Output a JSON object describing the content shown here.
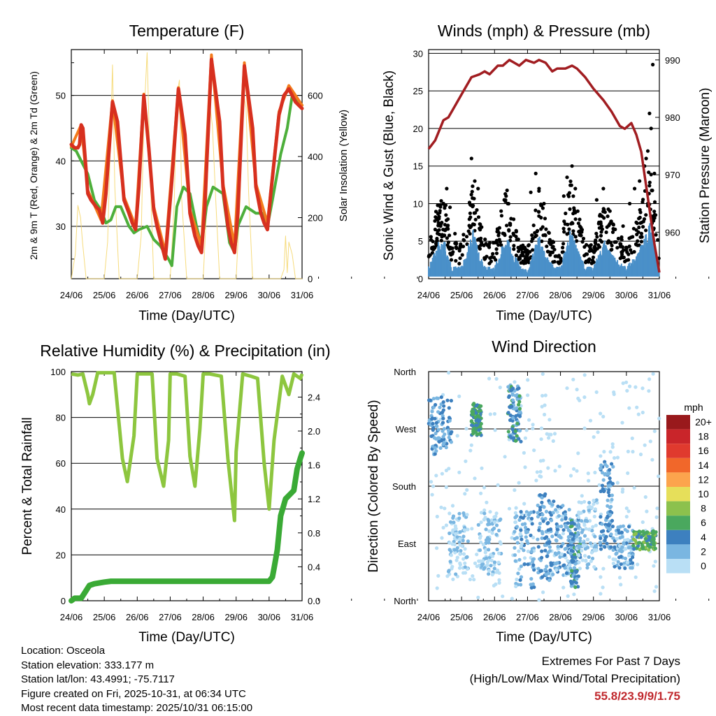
{
  "chart_data": [
    {
      "type": "line",
      "title": "Temperature (F)",
      "xlabel": "Time (Day/UTC)",
      "ylabel": "2m & 9m T (Red, Orange) & 2m Td (Green)",
      "y2label": "Solar Insolation (Yellow)",
      "xticks": [
        "24/06",
        "25/06",
        "26/06",
        "27/06",
        "28/06",
        "29/06",
        "30/06",
        "31/06"
      ],
      "ylim": [
        22,
        57
      ],
      "yticks": [
        30,
        40,
        50
      ],
      "y2lim": [
        0,
        750
      ],
      "y2ticks": [
        0,
        200,
        400,
        600
      ],
      "grid": "horizontal",
      "series": [
        {
          "name": "2m T",
          "color": "#d7301f",
          "x": [
            0,
            0.1,
            0.2,
            0.25,
            0.3,
            0.35,
            0.5,
            0.6,
            0.75,
            0.85,
            0.95,
            1.05,
            1.25,
            1.4,
            1.5,
            1.6,
            1.75,
            1.85,
            1.95,
            2.05,
            2.2,
            2.35,
            2.5,
            2.6,
            2.7,
            2.85,
            3.05,
            3.25,
            3.45,
            3.6,
            3.75,
            3.85,
            3.95,
            4.05,
            4.25,
            4.5,
            4.6,
            4.75,
            4.85,
            4.95,
            5.05,
            5.25,
            5.5,
            5.6,
            5.75,
            5.85,
            5.95,
            6.05,
            6.3,
            6.45,
            6.6,
            6.8,
            6.9,
            7.0
          ],
          "y": [
            42.5,
            42,
            42,
            42.5,
            45.5,
            45,
            35,
            34,
            33,
            32.5,
            30.5,
            35,
            49,
            46,
            40,
            34,
            32,
            30.5,
            29.5,
            36,
            50,
            42,
            32.5,
            30,
            28,
            25,
            37,
            51,
            44,
            32,
            28.5,
            27,
            26,
            33,
            55.5,
            46,
            36,
            30,
            27.5,
            26,
            32,
            54.5,
            45,
            36,
            32,
            30.5,
            29.5,
            35,
            47,
            50,
            51,
            49,
            48.5,
            48
          ]
        },
        {
          "name": "9m T",
          "color": "#f37b1d",
          "x": [
            0,
            0.3,
            0.5,
            0.9,
            1.25,
            1.6,
            1.95,
            2.2,
            2.5,
            2.85,
            3.25,
            3.6,
            3.95,
            4.25,
            4.6,
            4.95,
            5.25,
            5.6,
            5.95,
            6.3,
            6.6,
            6.8,
            7.0
          ],
          "y": [
            42.2,
            45.5,
            35.5,
            31,
            49.2,
            34.5,
            30,
            50.2,
            33,
            26,
            51.2,
            32.5,
            27,
            56.2,
            36.5,
            27,
            55,
            36.5,
            30.5,
            47.5,
            51.5,
            50,
            48.5
          ]
        },
        {
          "name": "2m Td",
          "color": "#4daf3b",
          "x": [
            0,
            0.15,
            0.3,
            0.5,
            0.7,
            0.9,
            1.05,
            1.2,
            1.35,
            1.5,
            1.75,
            1.9,
            2.05,
            2.3,
            2.5,
            2.7,
            2.95,
            3.05,
            3.2,
            3.4,
            3.6,
            3.8,
            3.95,
            4.1,
            4.3,
            4.6,
            4.8,
            4.95,
            5.05,
            5.3,
            5.6,
            5.8,
            5.95,
            6.1,
            6.35,
            6.55,
            6.7,
            6.85,
            7.0
          ],
          "y": [
            42,
            41.5,
            40,
            38,
            34,
            32.5,
            30.5,
            31,
            33,
            33,
            30,
            29,
            29.5,
            30,
            28,
            27,
            25,
            24,
            33,
            36,
            35,
            30,
            27,
            33,
            36,
            35,
            27.5,
            26,
            30,
            33,
            32,
            32,
            30,
            34,
            41,
            45,
            50,
            49,
            48.5
          ]
        },
        {
          "name": "Solar Insolation",
          "color": "#f5d76e",
          "axis": "right",
          "x": [
            0,
            0.12,
            0.2,
            0.28,
            0.34,
            0.45,
            1.0,
            1.1,
            1.18,
            1.25,
            1.32,
            1.45,
            2.0,
            2.12,
            2.2,
            2.3,
            2.4,
            2.5,
            3.0,
            3.12,
            3.2,
            3.28,
            3.35,
            3.5,
            4.0,
            4.1,
            4.2,
            4.28,
            4.38,
            4.5,
            5.0,
            5.12,
            5.2,
            5.3,
            5.38,
            5.5,
            6.0,
            6.35,
            6.45,
            6.5,
            6.55,
            6.6,
            6.7,
            6.8,
            7.0
          ],
          "y": [
            0,
            80,
            240,
            200,
            120,
            0,
            0,
            120,
            420,
            700,
            300,
            0,
            0,
            140,
            520,
            740,
            320,
            0,
            0,
            240,
            600,
            650,
            260,
            0,
            0,
            220,
            570,
            500,
            260,
            0,
            0,
            260,
            620,
            560,
            280,
            0,
            0,
            0,
            30,
            140,
            20,
            120,
            80,
            0,
            0
          ]
        }
      ]
    },
    {
      "type": "line+scatter",
      "title": "Winds (mph) & Pressure (mb)",
      "xlabel": "Time (Day/UTC)",
      "ylabel": "Sonic Wind & Gust (Blue, Black)",
      "y2label": "Station Pressure (Maroon)",
      "xticks": [
        "24/06",
        "25/06",
        "26/06",
        "27/06",
        "28/06",
        "29/06",
        "30/06",
        "31/06"
      ],
      "ylim": [
        0,
        30.5
      ],
      "yticks": [
        0,
        5,
        10,
        15,
        20,
        25,
        30
      ],
      "y2lim": [
        951.9,
        991.8
      ],
      "y2ticks": [
        960,
        970,
        980,
        990
      ],
      "grid": "horizontal",
      "series": [
        {
          "name": "Station Pressure",
          "color": "#a11d21",
          "axis": "right",
          "x": [
            0,
            0.2,
            0.45,
            0.6,
            0.8,
            1.0,
            1.3,
            1.55,
            1.7,
            1.85,
            2.1,
            2.25,
            2.45,
            2.6,
            2.75,
            2.95,
            3.2,
            3.35,
            3.55,
            3.75,
            3.9,
            4.15,
            4.35,
            4.5,
            4.75,
            5.0,
            5.3,
            5.55,
            5.8,
            5.95,
            6.15,
            6.3,
            6.45,
            6.55,
            6.7,
            6.85,
            7.0
          ],
          "y": [
            974.5,
            976,
            979.5,
            980,
            982,
            984,
            987,
            987.5,
            988,
            987.5,
            989,
            989,
            990,
            989.5,
            989,
            990,
            989.5,
            990,
            989.5,
            988,
            988.5,
            988.5,
            989,
            988.5,
            987,
            985,
            983,
            981,
            978.5,
            978,
            979,
            977,
            974,
            970,
            964,
            958,
            953
          ]
        },
        {
          "name": "Sonic Wind",
          "color": "#4a90c9",
          "kind": "band",
          "x": [
            0,
            0.3,
            0.5,
            0.7,
            1.0,
            1.35,
            1.55,
            1.75,
            2.0,
            2.35,
            2.6,
            2.8,
            3.0,
            3.35,
            3.55,
            3.8,
            4.0,
            4.3,
            4.5,
            4.75,
            5.0,
            5.35,
            5.55,
            5.8,
            6.0,
            6.3,
            6.55,
            6.7,
            6.85,
            7.0
          ],
          "y": [
            1.5,
            4.5,
            4.5,
            1.5,
            1.5,
            6,
            3,
            1.5,
            1.5,
            5.5,
            3,
            1.5,
            1,
            5.5,
            3,
            1.5,
            1.5,
            6,
            4,
            1.5,
            1.5,
            5,
            3,
            2,
            1.5,
            3,
            5,
            7,
            5,
            0.8
          ]
        },
        {
          "name": "Gust",
          "color": "#000000",
          "kind": "dots",
          "x": [
            0.1,
            0.3,
            0.45,
            0.55,
            0.65,
            0.8,
            1.3,
            1.4,
            1.5,
            2.2,
            2.35,
            2.4,
            2.5,
            3.1,
            3.25,
            3.35,
            3.5,
            4.1,
            4.2,
            4.35,
            4.45,
            5.1,
            5.3,
            5.5,
            5.9,
            6.1,
            6.25,
            6.4,
            6.55,
            6.65,
            6.75,
            6.85,
            6.7,
            6.8,
            6.6
          ],
          "y": [
            4,
            8,
            10,
            12,
            9.5,
            6,
            16,
            13,
            12,
            9,
            11,
            10,
            8,
            11.5,
            14,
            12,
            10,
            11,
            13.5,
            15,
            12,
            10.5,
            12,
            9,
            7,
            10,
            12,
            13,
            15,
            17,
            20,
            14,
            22,
            28.5,
            16
          ]
        }
      ]
    },
    {
      "type": "line",
      "title": "Relative Humidity (%) & Precipitation (in)",
      "xlabel": "Time (Day/UTC)",
      "ylabel": "Percent & Total Rainfall",
      "xticks": [
        "24/06",
        "25/06",
        "26/06",
        "27/06",
        "28/06",
        "29/06",
        "30/06",
        "31/06"
      ],
      "ylim": [
        0,
        100
      ],
      "yticks": [
        0,
        20,
        40,
        60,
        80,
        100
      ],
      "y2lim": [
        0,
        2.7
      ],
      "y2ticks": [
        0.0,
        0.4,
        0.8,
        1.2,
        1.6,
        2.0,
        2.4
      ],
      "grid": "horizontal",
      "series": [
        {
          "name": "Relative Humidity",
          "color": "#8dc63f",
          "x": [
            0,
            0.2,
            0.35,
            0.5,
            0.55,
            0.65,
            0.8,
            1.0,
            1.3,
            1.55,
            1.7,
            1.9,
            2.0,
            2.2,
            2.45,
            2.6,
            2.8,
            2.95,
            3.0,
            3.2,
            3.45,
            3.6,
            3.75,
            3.9,
            4.0,
            4.2,
            4.55,
            4.75,
            4.95,
            5.0,
            5.2,
            5.45,
            5.65,
            5.85,
            6.0,
            6.15,
            6.4,
            6.6,
            6.75,
            6.95,
            7.0
          ],
          "y": [
            99,
            98.5,
            99,
            90,
            86,
            90,
            99.5,
            99.5,
            99.5,
            62,
            52,
            72,
            99,
            99,
            99,
            62,
            50,
            70,
            99,
            99,
            98,
            63,
            50,
            75,
            99,
            99,
            98,
            62,
            35,
            65,
            99,
            98,
            97,
            60,
            40,
            70,
            98,
            90,
            99,
            97,
            99
          ]
        },
        {
          "name": "Total Precipitation",
          "color": "#3aaa35",
          "axis": "right",
          "x": [
            0,
            0.1,
            0.3,
            0.45,
            0.55,
            0.7,
            1.0,
            1.2,
            6.0,
            6.1,
            6.15,
            6.25,
            6.3,
            6.35,
            6.5,
            6.7,
            6.75,
            6.85,
            6.95,
            7.0
          ],
          "y": [
            0,
            0.03,
            0.03,
            0.12,
            0.18,
            0.2,
            0.22,
            0.23,
            0.23,
            0.28,
            0.38,
            0.6,
            0.8,
            1.0,
            1.2,
            1.28,
            1.3,
            1.55,
            1.68,
            1.74
          ]
        }
      ]
    },
    {
      "type": "scatter",
      "title": "Wind Direction",
      "xlabel": "Time (Day/UTC)",
      "ylabel": "Direction (Colored By Speed)",
      "xticks": [
        "24/06",
        "25/06",
        "26/06",
        "27/06",
        "28/06",
        "29/06",
        "30/06",
        "31/06"
      ],
      "yticks": [
        "North",
        "East",
        "South",
        "West",
        "North"
      ],
      "ylim": [
        0,
        360
      ],
      "grid": "horizontal",
      "colorbar": {
        "title": "mph",
        "labels": [
          "20+",
          "18",
          "16",
          "14",
          "12",
          "10",
          "8",
          "6",
          "4",
          "2",
          "0"
        ],
        "colors": [
          "#99191c",
          "#c9252a",
          "#e03a2e",
          "#f1672a",
          "#fca44d",
          "#e6df5a",
          "#8cc14d",
          "#4aa85e",
          "#3d80bf",
          "#7ab6e1",
          "#b9dff5"
        ]
      },
      "clusters": [
        {
          "x0": 0.0,
          "x1": 0.7,
          "d0": 230,
          "d1": 320,
          "speed": 3
        },
        {
          "x0": 0.6,
          "x1": 1.2,
          "d0": 40,
          "d1": 140,
          "speed": 1
        },
        {
          "x0": 1.3,
          "x1": 1.6,
          "d0": 260,
          "d1": 310,
          "speed": 5
        },
        {
          "x0": 1.5,
          "x1": 2.2,
          "d0": 40,
          "d1": 140,
          "speed": 1
        },
        {
          "x0": 2.4,
          "x1": 2.8,
          "d0": 250,
          "d1": 340,
          "speed": 4
        },
        {
          "x0": 2.6,
          "x1": 3.2,
          "d0": 20,
          "d1": 140,
          "speed": 2
        },
        {
          "x0": 3.3,
          "x1": 3.8,
          "d0": 30,
          "d1": 170,
          "speed": 3
        },
        {
          "x0": 3.8,
          "x1": 4.3,
          "d0": 40,
          "d1": 150,
          "speed": 2
        },
        {
          "x0": 4.3,
          "x1": 4.6,
          "d0": 20,
          "d1": 130,
          "speed": 4
        },
        {
          "x0": 4.5,
          "x1": 5.1,
          "d0": 50,
          "d1": 160,
          "speed": 1
        },
        {
          "x0": 5.2,
          "x1": 5.6,
          "d0": 80,
          "d1": 220,
          "speed": 3
        },
        {
          "x0": 5.6,
          "x1": 6.2,
          "d0": 50,
          "d1": 120,
          "speed": 2
        },
        {
          "x0": 6.2,
          "x1": 6.9,
          "d0": 80,
          "d1": 110,
          "speed": 6
        }
      ]
    }
  ],
  "info": {
    "location": "Location: Osceola",
    "elevation": "Station elevation: 333.177 m",
    "latlon": "Station lat/lon: 43.4991; -75.7117",
    "created": "Figure created on Fri, 2025-10-31, at 06:34 UTC",
    "recent": "Most recent data timestamp: 2025/10/31 06:15:00"
  },
  "extremes": {
    "heading": "Extremes For Past 7 Days",
    "subheading": "(High/Low/Max Wind/Total Precipitation)",
    "values": "55.8/23.9/9/1.75"
  }
}
